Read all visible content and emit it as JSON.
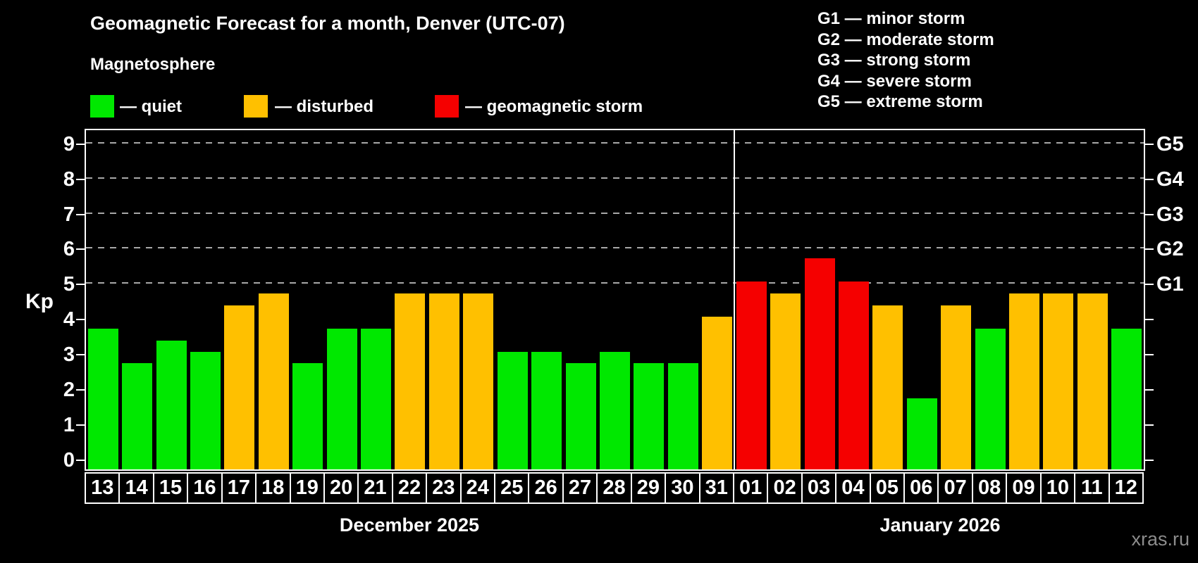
{
  "title": "Geomagnetic Forecast for a month, Denver (UTC-07)",
  "subtitle": "Magnetosphere",
  "legend": {
    "quiet": {
      "label": "— quiet",
      "color": "#00e800"
    },
    "disturbed": {
      "label": "— disturbed",
      "color": "#ffc000"
    },
    "storm": {
      "label": "— geomagnetic storm",
      "color": "#f50000"
    }
  },
  "g_legend": [
    "G1 — minor storm",
    "G2 — moderate storm",
    "G3 — strong storm",
    "G4 — severe storm",
    "G5 — extreme storm"
  ],
  "axis": {
    "ylabel": "Kp",
    "yticks": [
      "0",
      "1",
      "2",
      "3",
      "4",
      "5",
      "6",
      "7",
      "8",
      "9"
    ],
    "right_labels": [
      "G1",
      "G2",
      "G3",
      "G4",
      "G5"
    ]
  },
  "watermark": "xras.ru",
  "chart_data": {
    "type": "bar",
    "title": "Geomagnetic Forecast for a month, Denver (UTC-07)",
    "xlabel": "",
    "ylabel": "Kp",
    "ylim": [
      0,
      9
    ],
    "grid_levels": [
      5,
      6,
      7,
      8,
      9
    ],
    "legend_position": "top",
    "groups": [
      {
        "month": "December 2025",
        "days": [
          "13",
          "14",
          "15",
          "16",
          "17",
          "18",
          "19",
          "20",
          "21",
          "22",
          "23",
          "24",
          "25",
          "26",
          "27",
          "28",
          "29",
          "30",
          "31"
        ],
        "values": [
          3.67,
          2.67,
          3.33,
          3.0,
          4.33,
          4.67,
          2.67,
          3.67,
          3.67,
          4.67,
          4.67,
          4.67,
          3.0,
          3.0,
          2.67,
          3.0,
          2.67,
          2.67,
          4.0
        ],
        "statuses": [
          "quiet",
          "quiet",
          "quiet",
          "quiet",
          "disturbed",
          "disturbed",
          "quiet",
          "quiet",
          "quiet",
          "disturbed",
          "disturbed",
          "disturbed",
          "quiet",
          "quiet",
          "quiet",
          "quiet",
          "quiet",
          "quiet",
          "disturbed"
        ]
      },
      {
        "month": "January 2026",
        "days": [
          "01",
          "02",
          "03",
          "04",
          "05",
          "06",
          "07",
          "08",
          "09",
          "10",
          "11",
          "12"
        ],
        "values": [
          5.0,
          4.67,
          5.67,
          5.0,
          4.33,
          1.67,
          4.33,
          3.67,
          4.67,
          4.67,
          4.67,
          3.67
        ],
        "statuses": [
          "storm",
          "disturbed",
          "storm",
          "storm",
          "disturbed",
          "quiet",
          "disturbed",
          "quiet",
          "disturbed",
          "disturbed",
          "disturbed",
          "quiet"
        ]
      }
    ]
  }
}
